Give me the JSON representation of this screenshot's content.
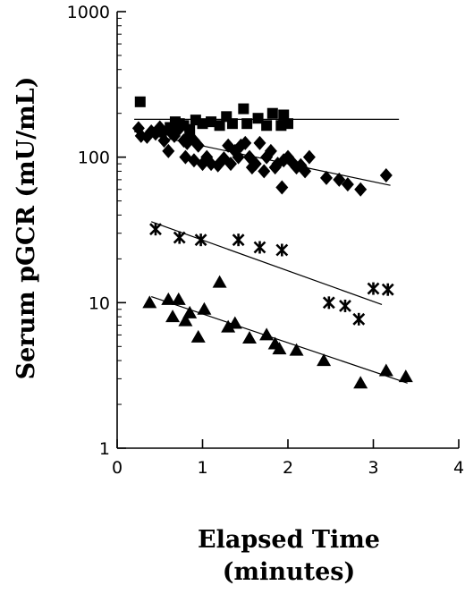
{
  "chart_data": {
    "type": "scatter",
    "title": "",
    "xlabel": "Elapsed Time",
    "xlabel_line2": "(minutes)",
    "ylabel": "Serum pGCR (mU/mL)",
    "xlim": [
      0,
      4
    ],
    "ylim": [
      1,
      1000
    ],
    "yscale": "log",
    "x_ticks": [
      "0",
      "1",
      "2",
      "3",
      "4"
    ],
    "y_ticks": [
      "1",
      "10",
      "100",
      "1000"
    ],
    "grid": false,
    "legend": "none",
    "series": [
      {
        "marker": "square",
        "points": [
          [
            0.27,
            240
          ],
          [
            0.52,
            150
          ],
          [
            0.62,
            160
          ],
          [
            0.68,
            175
          ],
          [
            0.73,
            170
          ],
          [
            0.78,
            165
          ],
          [
            0.85,
            155
          ],
          [
            0.92,
            180
          ],
          [
            1.0,
            170
          ],
          [
            1.1,
            175
          ],
          [
            1.2,
            165
          ],
          [
            1.28,
            190
          ],
          [
            1.35,
            170
          ],
          [
            1.48,
            215
          ],
          [
            1.52,
            170
          ],
          [
            1.65,
            185
          ],
          [
            1.75,
            165
          ],
          [
            1.82,
            200
          ],
          [
            1.92,
            165
          ],
          [
            1.95,
            195
          ],
          [
            2.0,
            170
          ]
        ],
        "fit": [
          [
            0.2,
            182
          ],
          [
            3.3,
            182
          ]
        ]
      },
      {
        "marker": "diamond",
        "points": [
          [
            0.25,
            158
          ],
          [
            0.28,
            140
          ],
          [
            0.35,
            138
          ],
          [
            0.4,
            150
          ],
          [
            0.45,
            145
          ],
          [
            0.5,
            160
          ],
          [
            0.55,
            130
          ],
          [
            0.6,
            110
          ],
          [
            0.62,
            150
          ],
          [
            0.67,
            140
          ],
          [
            0.72,
            155
          ],
          [
            0.78,
            130
          ],
          [
            0.82,
            125
          ],
          [
            0.85,
            140
          ],
          [
            0.9,
            130
          ],
          [
            0.95,
            120
          ],
          [
            0.8,
            100
          ],
          [
            0.9,
            95
          ],
          [
            1.0,
            90
          ],
          [
            1.05,
            100
          ],
          [
            1.1,
            90
          ],
          [
            1.18,
            88
          ],
          [
            1.25,
            98
          ],
          [
            1.3,
            120
          ],
          [
            1.33,
            90
          ],
          [
            1.38,
            110
          ],
          [
            1.42,
            100
          ],
          [
            1.45,
            120
          ],
          [
            1.5,
            125
          ],
          [
            1.55,
            100
          ],
          [
            1.58,
            85
          ],
          [
            1.62,
            90
          ],
          [
            1.67,
            125
          ],
          [
            1.72,
            80
          ],
          [
            1.75,
            100
          ],
          [
            1.8,
            110
          ],
          [
            1.85,
            85
          ],
          [
            1.88,
            90
          ],
          [
            1.93,
            62
          ],
          [
            1.95,
            95
          ],
          [
            2.0,
            100
          ],
          [
            2.05,
            92
          ],
          [
            2.1,
            85
          ],
          [
            2.15,
            88
          ],
          [
            2.2,
            80
          ],
          [
            2.25,
            100
          ],
          [
            2.45,
            72
          ],
          [
            2.6,
            70
          ],
          [
            2.7,
            65
          ],
          [
            2.85,
            60
          ],
          [
            3.15,
            75
          ]
        ],
        "fit": [
          [
            0.2,
            150
          ],
          [
            3.2,
            64
          ]
        ]
      },
      {
        "marker": "asterisk",
        "points": [
          [
            0.45,
            32
          ],
          [
            0.73,
            28
          ],
          [
            0.98,
            27
          ],
          [
            1.42,
            27
          ],
          [
            1.67,
            24
          ],
          [
            1.93,
            23
          ],
          [
            2.48,
            10
          ],
          [
            2.67,
            9.5
          ],
          [
            2.83,
            7.7
          ],
          [
            3.0,
            12.5
          ],
          [
            3.17,
            12.3
          ]
        ],
        "fit": [
          [
            0.4,
            36
          ],
          [
            3.1,
            9.7
          ]
        ]
      },
      {
        "marker": "triangle",
        "points": [
          [
            0.38,
            10.0
          ],
          [
            0.6,
            10.5
          ],
          [
            0.65,
            8.0
          ],
          [
            0.72,
            10.5
          ],
          [
            0.8,
            7.5
          ],
          [
            0.85,
            8.5
          ],
          [
            0.95,
            5.8
          ],
          [
            1.02,
            9.0
          ],
          [
            1.2,
            13.8
          ],
          [
            1.3,
            6.8
          ],
          [
            1.38,
            7.2
          ],
          [
            1.55,
            5.7
          ],
          [
            1.75,
            6.0
          ],
          [
            1.85,
            5.2
          ],
          [
            1.9,
            4.8
          ],
          [
            2.1,
            4.7
          ],
          [
            2.42,
            4.0
          ],
          [
            2.85,
            2.8
          ],
          [
            3.15,
            3.4
          ],
          [
            3.38,
            3.1
          ]
        ],
        "fit": [
          [
            0.4,
            11
          ],
          [
            3.4,
            2.8
          ]
        ]
      }
    ]
  }
}
